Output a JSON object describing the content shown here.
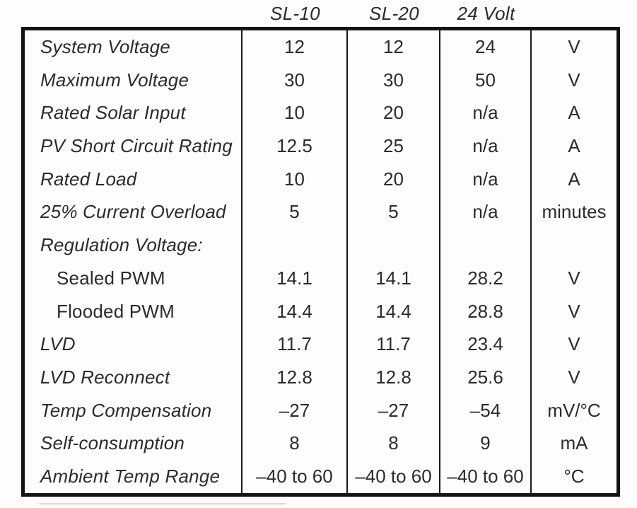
{
  "table": {
    "columns": {
      "sl10": "SL-10",
      "sl20": "SL-20",
      "v24": "24 Volt"
    },
    "rows": [
      {
        "label": "System Voltage",
        "sl10": "12",
        "sl20": "12",
        "v24": "24",
        "unit": "V"
      },
      {
        "label": "Maximum Voltage",
        "sl10": "30",
        "sl20": "30",
        "v24": "50",
        "unit": "V"
      },
      {
        "label": "Rated Solar Input",
        "sl10": "10",
        "sl20": "20",
        "v24": "n/a",
        "unit": "A"
      },
      {
        "label": "PV Short Circuit Rating",
        "sl10": "12.5",
        "sl20": "25",
        "v24": "n/a",
        "unit": "A"
      },
      {
        "label": "Rated Load",
        "sl10": "10",
        "sl20": "20",
        "v24": "n/a",
        "unit": "A"
      },
      {
        "label": "25% Current Overload",
        "sl10": "5",
        "sl20": "5",
        "v24": "n/a",
        "unit": "minutes"
      },
      {
        "label": "Regulation Voltage:",
        "sl10": "",
        "sl20": "",
        "v24": "",
        "unit": ""
      },
      {
        "label": "Sealed PWM",
        "sl10": "14.1",
        "sl20": "14.1",
        "v24": "28.2",
        "unit": "V"
      },
      {
        "label": "Flooded PWM",
        "sl10": "14.4",
        "sl20": "14.4",
        "v24": "28.8",
        "unit": "V"
      },
      {
        "label": "LVD",
        "sl10": "11.7",
        "sl20": "11.7",
        "v24": "23.4",
        "unit": "V"
      },
      {
        "label": "LVD Reconnect",
        "sl10": "12.8",
        "sl20": "12.8",
        "v24": "25.6",
        "unit": "V"
      },
      {
        "label": "Temp Compensation",
        "sl10": "–27",
        "sl20": "–27",
        "v24": "–54",
        "unit": "mV/°C"
      },
      {
        "label": "Self-consumption",
        "sl10": "8",
        "sl20": "8",
        "v24": "9",
        "unit": "mA"
      },
      {
        "label": "Ambient Temp Range",
        "sl10": "–40 to 60",
        "sl20": "–40 to 60",
        "v24": "–40 to 60",
        "unit": "°C"
      }
    ],
    "colors": {
      "text": "#2b2b2b",
      "outer_border": "#141414",
      "inner_line": "#1a1a1a",
      "background": "#fdfdfd"
    }
  }
}
